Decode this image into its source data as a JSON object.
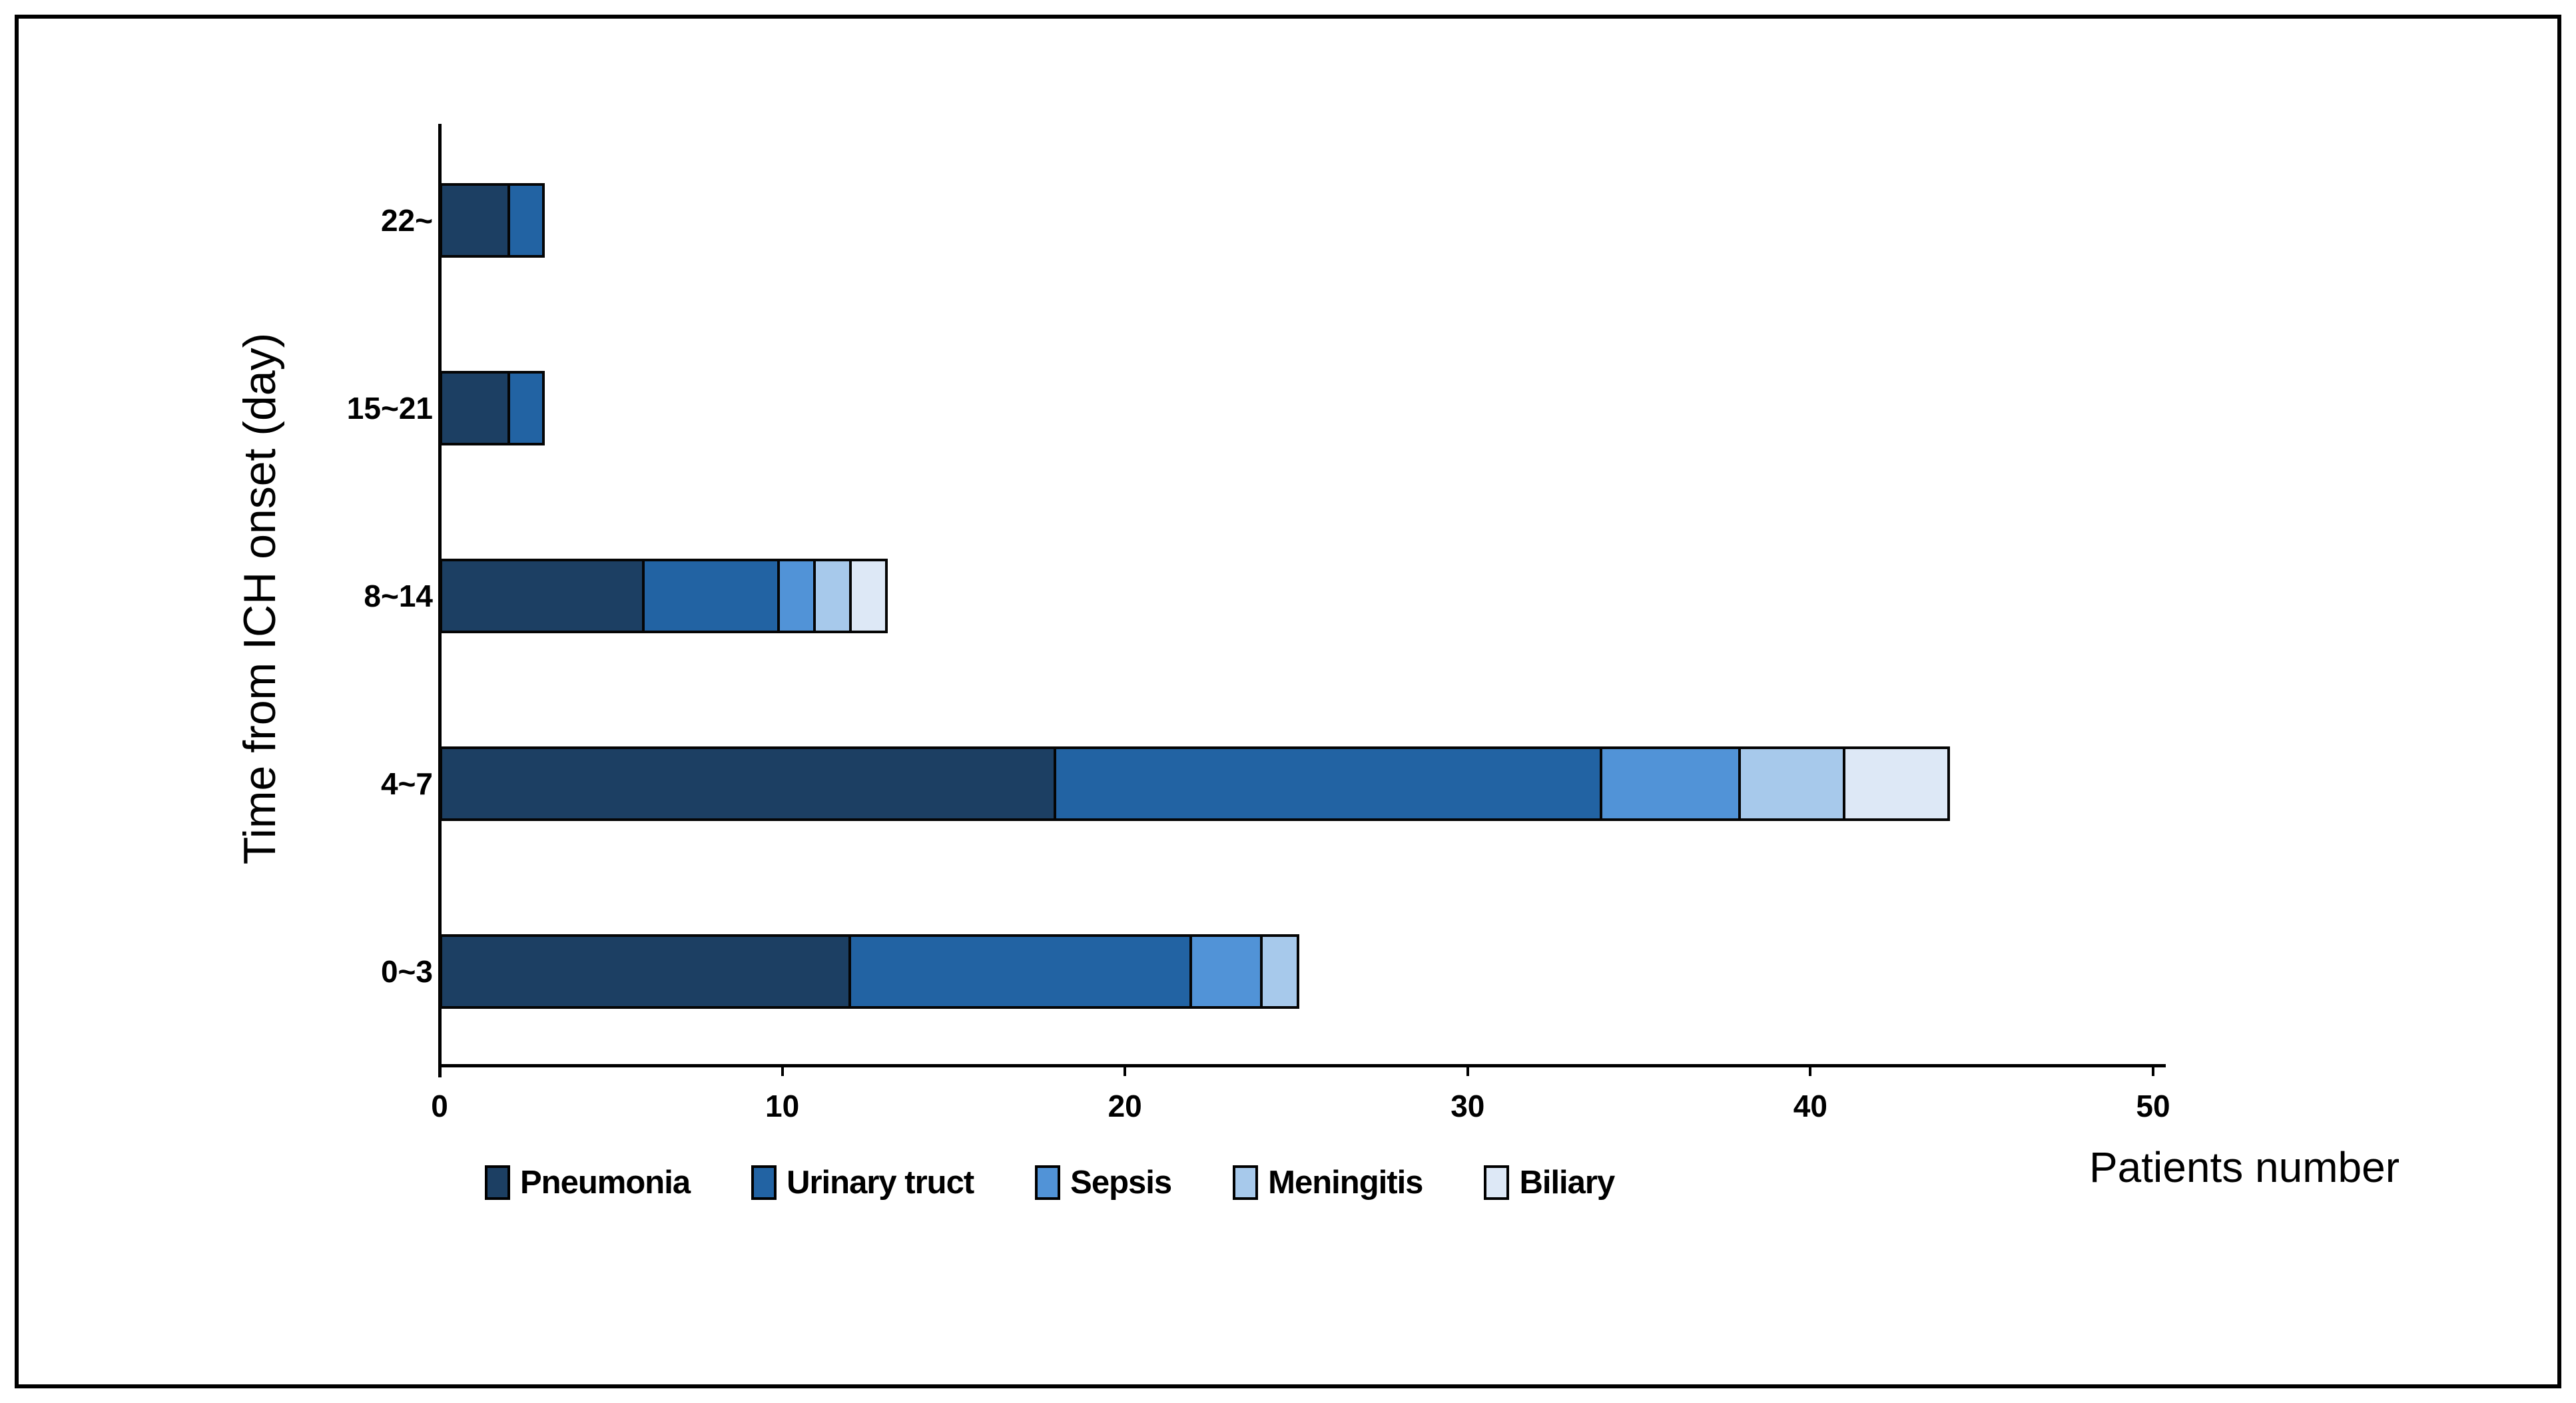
{
  "chart_data": {
    "type": "bar",
    "orientation": "horizontal",
    "stacked": true,
    "title": "",
    "xlabel": "Patients number",
    "ylabel": "Time from ICH onset (day)",
    "categories": [
      "0~3",
      "4~7",
      "8~14",
      "15~21",
      "22~"
    ],
    "series": [
      {
        "name": "Pneumonia",
        "color": "#1C3F63",
        "values": [
          12,
          18,
          6,
          2,
          2
        ]
      },
      {
        "name": "Urinary truct",
        "color": "#2263A3",
        "values": [
          10,
          16,
          4,
          1,
          1
        ]
      },
      {
        "name": "Sepsis",
        "color": "#5193D7",
        "values": [
          2,
          4,
          1,
          0,
          0
        ]
      },
      {
        "name": "Meningitis",
        "color": "#A7C9EB",
        "values": [
          1,
          3,
          1,
          0,
          0
        ]
      },
      {
        "name": "Biliary",
        "color": "#DDE8F6",
        "values": [
          0,
          3,
          1,
          0,
          0
        ]
      }
    ],
    "totals": [
      25,
      44,
      13,
      3,
      3
    ],
    "x_ticks": [
      0,
      10,
      20,
      30,
      40,
      50
    ],
    "xlim": [
      0,
      50
    ],
    "grid": false,
    "legend_position": "bottom",
    "outline_color": "#050505"
  }
}
